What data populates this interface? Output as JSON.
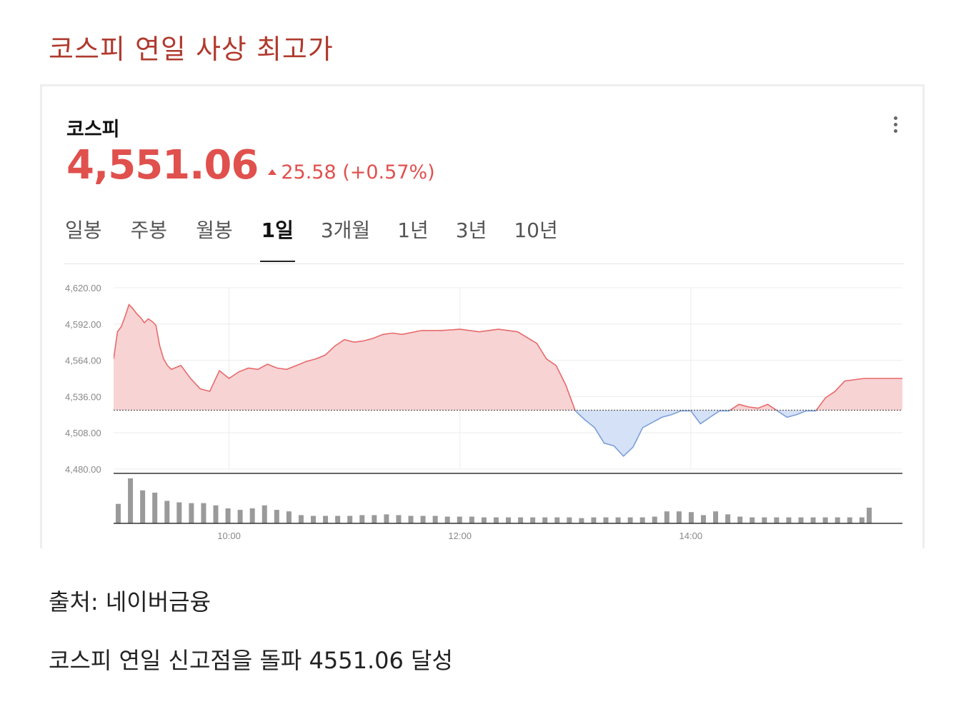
{
  "headline": "코스피 연일 사상 최고가",
  "card": {
    "index_name": "코스피",
    "price": "4,551.06",
    "change": "25.58 (+0.57%)",
    "direction": "up",
    "menu_icon": "more-vertical-icon",
    "tabs": [
      {
        "label": "일봉",
        "active": false
      },
      {
        "label": "주봉",
        "active": false
      },
      {
        "label": "월봉",
        "active": false
      },
      {
        "label": "1일",
        "active": true
      },
      {
        "label": "3개월",
        "active": false
      },
      {
        "label": "1년",
        "active": false
      },
      {
        "label": "3년",
        "active": false
      },
      {
        "label": "10년",
        "active": false
      }
    ]
  },
  "chart_data": {
    "type": "area",
    "title": "",
    "xlabel": "",
    "ylabel": "",
    "baseline": 4525.48,
    "ylim": [
      4480,
      4620
    ],
    "y_ticks": [
      4620,
      4592,
      4564,
      4536,
      4508,
      4480
    ],
    "y_tick_labels": [
      "4,620.00",
      "4,592.00",
      "4,564.00",
      "4,536.00",
      "4,508.00",
      "4,480.00"
    ],
    "x_range": [
      "09:00",
      "15:50"
    ],
    "x_ticks": [
      "10:00",
      "12:00",
      "14:00"
    ],
    "grid": true,
    "colors": {
      "above": "#e8696a",
      "above_fill": "#f7d3d4",
      "below": "#7b9fd9",
      "below_fill": "#d5e1f6",
      "volume": "#9a9a9a"
    },
    "series": [
      {
        "x": [
          "09:00",
          "09:02",
          "09:04",
          "09:06",
          "09:08",
          "09:10",
          "09:12",
          "09:14",
          "09:16",
          "09:18",
          "09:20",
          "09:22",
          "09:24",
          "09:26",
          "09:28",
          "09:30",
          "09:35",
          "09:40",
          "09:45",
          "09:50",
          "09:55",
          "10:00",
          "10:05",
          "10:10",
          "10:15",
          "10:20",
          "10:25",
          "10:30",
          "10:35",
          "10:40",
          "10:45",
          "10:50",
          "10:55",
          "11:00",
          "11:05",
          "11:10",
          "11:15",
          "11:20",
          "11:25",
          "11:30",
          "11:40",
          "11:50",
          "12:00",
          "12:10",
          "12:20",
          "12:30",
          "12:40",
          "12:45",
          "12:50",
          "12:55",
          "13:00",
          "13:05",
          "13:10",
          "13:15",
          "13:20",
          "13:25",
          "13:30",
          "13:35",
          "13:40",
          "13:45",
          "13:50",
          "13:55",
          "14:00",
          "14:05",
          "14:10",
          "14:15",
          "14:20",
          "14:25",
          "14:30",
          "14:35",
          "14:40",
          "14:45",
          "14:50",
          "14:55",
          "15:00",
          "15:05",
          "15:10",
          "15:15",
          "15:20",
          "15:30",
          "15:40",
          "15:50"
        ],
        "values": [
          4565,
          4586,
          4590,
          4598,
          4607,
          4604,
          4600,
          4597,
          4593,
          4596,
          4594,
          4591,
          4575,
          4565,
          4560,
          4557,
          4560,
          4550,
          4542,
          4540,
          4556,
          4550,
          4555,
          4558,
          4557,
          4561,
          4558,
          4557,
          4560,
          4563,
          4565,
          4568,
          4575,
          4580,
          4578,
          4579,
          4581,
          4584,
          4585,
          4584,
          4587,
          4587,
          4588,
          4586,
          4588,
          4586,
          4577,
          4565,
          4560,
          4545,
          4525,
          4518,
          4512,
          4500,
          4498,
          4490,
          4497,
          4512,
          4516,
          4520,
          4522,
          4525,
          4525,
          4515,
          4520,
          4525,
          4525,
          4530,
          4528,
          4527,
          4530,
          4525,
          4520,
          4522,
          4525,
          4525,
          4535,
          4540,
          4548,
          4550,
          4550,
          4550
        ]
      }
    ],
    "volume": {
      "bars": 62,
      "values": [
        26,
        60,
        44,
        41,
        30,
        28,
        27,
        27,
        24,
        20,
        18,
        20,
        24,
        18,
        16,
        11,
        10,
        10,
        10,
        10,
        11,
        11,
        12,
        11,
        10,
        10,
        10,
        9,
        9,
        9,
        8,
        8,
        8,
        8,
        8,
        8,
        8,
        8,
        7,
        8,
        8,
        8,
        8,
        8,
        9,
        16,
        16,
        15,
        11,
        16,
        12,
        9,
        8,
        8,
        8,
        8,
        8,
        8,
        8,
        8,
        8,
        8
      ]
    }
  },
  "captions": {
    "source": "출처: 네이버금융",
    "summary": "코스피 연일 신고점을 돌파 4551.06 달성"
  }
}
